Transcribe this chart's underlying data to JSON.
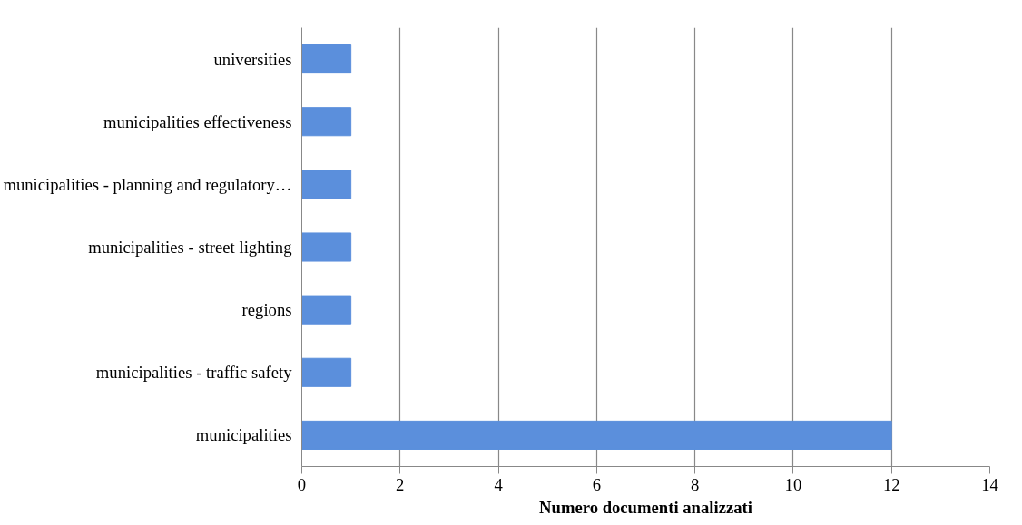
{
  "chart_data": {
    "type": "bar",
    "orientation": "horizontal",
    "xlabel": "Numero documenti analizzati",
    "categories": [
      "universities",
      "municipalities effectiveness",
      "municipalities - planning and regulatory…",
      "municipalities - street lighting",
      "regions",
      "municipalities - traffic safety",
      "municipalities"
    ],
    "values": [
      1,
      1,
      1,
      1,
      1,
      1,
      12
    ],
    "color": "#5b8fdc",
    "xlim": [
      0,
      14
    ],
    "xticks": [
      0,
      2,
      4,
      6,
      8,
      10,
      12,
      14
    ],
    "grid": "x"
  }
}
